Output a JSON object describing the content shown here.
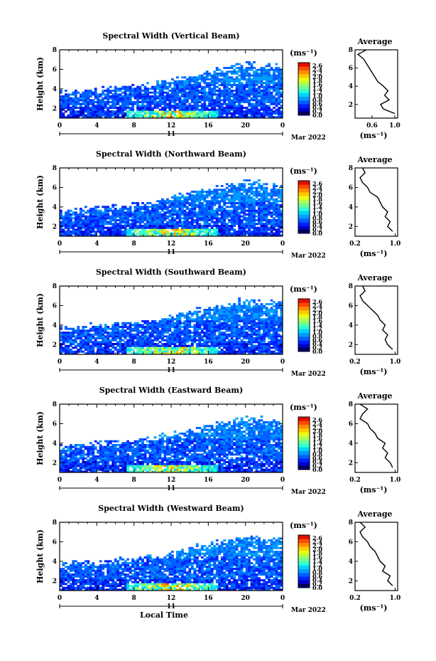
{
  "chart_data": [
    {
      "type": "heatmap",
      "title": "Spectral Width (Vertical Beam)",
      "ylabel": "Height (km)",
      "xlabel": "",
      "x_ticks": [
        "0",
        "4",
        "8",
        "12",
        "16",
        "20",
        "0"
      ],
      "y_ticks": [
        "2",
        "4",
        "6",
        "8"
      ],
      "xlim": [
        0,
        24
      ],
      "ylim": [
        1,
        8
      ],
      "date_day": "11",
      "date_month": "Mar 2022",
      "colorbar": {
        "label": "(ms⁻¹)",
        "ticks": [
          "2.6",
          "2.4",
          "2.2",
          "2.0",
          "1.8",
          "1.6",
          "1.4",
          "1.2",
          "1.0",
          "0.8",
          "0.6",
          "0.4",
          "0.2",
          "0.0"
        ],
        "range": [
          0.0,
          2.8
        ]
      },
      "profile": {
        "title": "Average",
        "xlabel": "(ms⁻¹)",
        "x_ticks": [
          "0.6",
          "1.0"
        ],
        "y_ticks": [
          "2",
          "4",
          "6",
          "8"
        ],
        "xlim": [
          0.3,
          1.05
        ],
        "ylim": [
          0.5,
          8
        ],
        "heights": [
          1.0,
          1.5,
          2.0,
          2.5,
          3.0,
          3.5,
          4.0,
          4.5,
          5.0,
          5.5,
          6.0,
          6.5,
          7.0,
          7.5,
          8.0
        ],
        "values": [
          1.0,
          0.8,
          0.75,
          0.9,
          0.82,
          0.88,
          0.8,
          0.7,
          0.65,
          0.6,
          0.55,
          0.5,
          0.45,
          0.35,
          0.5
        ]
      }
    },
    {
      "type": "heatmap",
      "title": "Spectral Width (Northward Beam)",
      "ylabel": "Height (km)",
      "xlabel": "",
      "x_ticks": [
        "0",
        "4",
        "8",
        "12",
        "16",
        "20",
        "0"
      ],
      "y_ticks": [
        "2",
        "4",
        "6",
        "8"
      ],
      "xlim": [
        0,
        24
      ],
      "ylim": [
        1,
        8
      ],
      "date_day": "11",
      "date_month": "Mar 2022",
      "colorbar": {
        "label": "(ms⁻¹)",
        "ticks": [
          "2.6",
          "2.4",
          "2.2",
          "2.0",
          "1.8",
          "1.6",
          "1.4",
          "1.2",
          "1.0",
          "0.8",
          "0.6",
          "0.4",
          "0.2",
          "0.0"
        ],
        "range": [
          0.0,
          2.8
        ]
      },
      "profile": {
        "title": "Average",
        "xlabel": "(ms⁻¹)",
        "x_ticks": [
          "0.2",
          "1.0"
        ],
        "y_ticks": [
          "2",
          "4",
          "6",
          "8"
        ],
        "xlim": [
          0.2,
          1.05
        ],
        "ylim": [
          1,
          8
        ],
        "heights": [
          1.5,
          2.0,
          2.5,
          3.0,
          3.5,
          4.0,
          4.5,
          5.0,
          5.5,
          6.0,
          6.5,
          7.0,
          7.5,
          8.0
        ],
        "values": [
          0.95,
          0.85,
          0.9,
          0.8,
          0.85,
          0.75,
          0.7,
          0.65,
          0.5,
          0.45,
          0.35,
          0.3,
          0.4,
          0.35
        ]
      }
    },
    {
      "type": "heatmap",
      "title": "Spectral Width (Southward Beam)",
      "ylabel": "Height (km)",
      "xlabel": "",
      "x_ticks": [
        "0",
        "4",
        "8",
        "12",
        "16",
        "20",
        "0"
      ],
      "y_ticks": [
        "2",
        "4",
        "6",
        "8"
      ],
      "xlim": [
        0,
        24
      ],
      "ylim": [
        1,
        8
      ],
      "date_day": "11",
      "date_month": "Mar 2022",
      "colorbar": {
        "label": "(ms⁻¹)",
        "ticks": [
          "2.6",
          "2.4",
          "2.2",
          "2.0",
          "1.8",
          "1.6",
          "1.4",
          "1.2",
          "1.0",
          "0.8",
          "0.6",
          "0.4",
          "0.2",
          "0.0"
        ],
        "range": [
          0.0,
          2.8
        ]
      },
      "profile": {
        "title": "Average",
        "xlabel": "(ms⁻¹)",
        "x_ticks": [
          "0.2",
          "1.0"
        ],
        "y_ticks": [
          "2",
          "4",
          "6",
          "8"
        ],
        "xlim": [
          0.2,
          1.05
        ],
        "ylim": [
          1,
          8
        ],
        "heights": [
          1.5,
          2.0,
          2.5,
          3.0,
          3.5,
          4.0,
          4.5,
          5.0,
          5.5,
          6.0,
          6.5,
          7.0,
          7.5,
          8.0
        ],
        "values": [
          0.95,
          0.85,
          0.8,
          0.85,
          0.75,
          0.8,
          0.7,
          0.65,
          0.55,
          0.45,
          0.35,
          0.3,
          0.4,
          0.35
        ]
      }
    },
    {
      "type": "heatmap",
      "title": "Spectral Width (Eastward Beam)",
      "ylabel": "Height (km)",
      "xlabel": "",
      "x_ticks": [
        "0",
        "4",
        "8",
        "12",
        "16",
        "20",
        "0"
      ],
      "y_ticks": [
        "2",
        "4",
        "6",
        "8"
      ],
      "xlim": [
        0,
        24
      ],
      "ylim": [
        1,
        8
      ],
      "date_day": "11",
      "date_month": "Mar 2022",
      "colorbar": {
        "label": "(ms⁻¹)",
        "ticks": [
          "2.6",
          "2.4",
          "2.2",
          "2.0",
          "1.8",
          "1.6",
          "1.4",
          "1.2",
          "1.0",
          "0.8",
          "0.6",
          "0.4",
          "0.2",
          "0.0"
        ],
        "range": [
          0.0,
          2.8
        ]
      },
      "profile": {
        "title": "Average",
        "xlabel": "(ms⁻¹)",
        "x_ticks": [
          "0.2",
          "1.0"
        ],
        "y_ticks": [
          "2",
          "4",
          "6",
          "8"
        ],
        "xlim": [
          0.2,
          1.05
        ],
        "ylim": [
          1,
          8
        ],
        "heights": [
          1.5,
          2.0,
          2.5,
          3.0,
          3.5,
          4.0,
          4.5,
          5.0,
          5.5,
          6.0,
          6.5,
          7.0,
          7.5,
          8.0
        ],
        "values": [
          0.95,
          0.9,
          0.8,
          0.85,
          0.75,
          0.8,
          0.65,
          0.6,
          0.5,
          0.45,
          0.3,
          0.35,
          0.45,
          0.3
        ]
      }
    },
    {
      "type": "heatmap",
      "title": "Spectral Width (Westward Beam)",
      "ylabel": "Height (km)",
      "xlabel": "Local Time",
      "x_ticks": [
        "0",
        "4",
        "8",
        "12",
        "16",
        "20",
        "0"
      ],
      "y_ticks": [
        "2",
        "4",
        "6",
        "8"
      ],
      "xlim": [
        0,
        24
      ],
      "ylim": [
        1,
        8
      ],
      "date_day": "11",
      "date_month": "Mar 2022",
      "colorbar": {
        "label": "(ms⁻¹)",
        "ticks": [
          "2.6",
          "2.4",
          "2.2",
          "2.0",
          "1.8",
          "1.6",
          "1.4",
          "1.2",
          "1.0",
          "0.8",
          "0.6",
          "0.4",
          "0.2",
          "0.0"
        ],
        "range": [
          0.0,
          2.8
        ]
      },
      "profile": {
        "title": "Average",
        "xlabel": "(ms⁻¹)",
        "x_ticks": [
          "0.2",
          "1.0"
        ],
        "y_ticks": [
          "2",
          "4",
          "6",
          "8"
        ],
        "xlim": [
          0.2,
          1.05
        ],
        "ylim": [
          1,
          8
        ],
        "heights": [
          1.5,
          2.0,
          2.5,
          3.0,
          3.5,
          4.0,
          4.5,
          5.0,
          5.5,
          6.0,
          6.5,
          7.0,
          7.5,
          8.0
        ],
        "values": [
          0.95,
          0.85,
          0.9,
          0.75,
          0.8,
          0.7,
          0.65,
          0.6,
          0.5,
          0.45,
          0.35,
          0.3,
          0.4,
          0.3
        ]
      }
    }
  ]
}
